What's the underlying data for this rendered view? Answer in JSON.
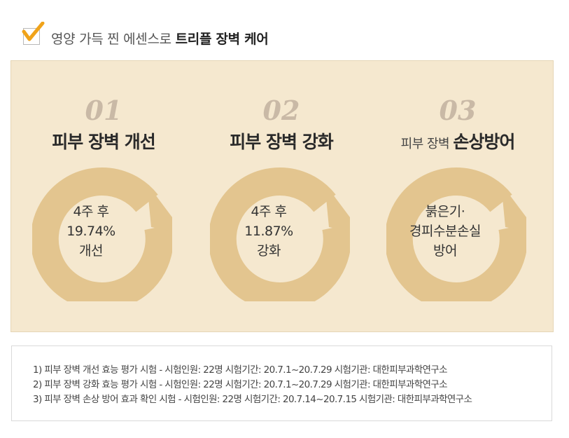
{
  "header": {
    "title_normal": "영양 가득 찐 에센스로 ",
    "title_bold": "트리플 장벽 케어",
    "icon": "checkbox-checked-icon"
  },
  "colors": {
    "panel_bg": "#f5e8cf",
    "ring_color": "#e3c58f",
    "check_color": "#f0a31a"
  },
  "items": [
    {
      "num": "01",
      "title": "피부 장벽 개선",
      "title_light": "",
      "center": [
        "4주 후",
        "19.74%",
        "개선"
      ]
    },
    {
      "num": "02",
      "title": "피부 장벽 강화",
      "title_light": "",
      "center": [
        "4주 후",
        "11.87%",
        "강화"
      ]
    },
    {
      "num": "03",
      "title": "손상방어",
      "title_light": "피부 장벽 ",
      "center": [
        "붉은기·",
        "경피수분손실",
        "방어"
      ]
    }
  ],
  "notes": [
    "1) 피부 장벽 개선 효능 평가 시험 - 시험인원: 22명   시험기간: 20.7.1~20.7.29  시험기관: 대한피부과학연구소",
    "2) 피부 장벽 강화 효능 평가 시험 - 시험인원: 22명   시험기간: 20.7.1~20.7.29 시험기관: 대한피부과학연구소",
    "3) 피부 장벽 손상 방어 효과 확인 시험 - 시험인원: 22명  시험기간: 20.7.14~20.7.15  시험기관: 대한피부과학연구소"
  ]
}
